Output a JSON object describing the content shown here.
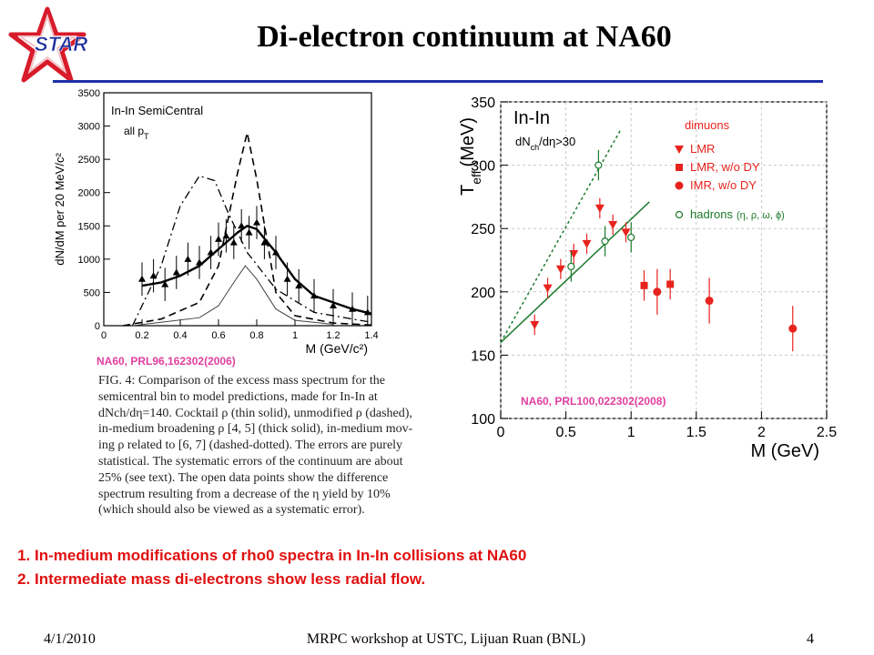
{
  "logo": {
    "text": "STAR"
  },
  "title": "Di-electron continuum at NA60",
  "colors": {
    "rule": "#1f2fa8",
    "citation": "#e040a0",
    "bullets": "#e01010",
    "star_red": "#d81b2a",
    "star_blue": "#1a2f9e"
  },
  "chart_data": [
    {
      "type": "line",
      "panel_label": "In-In SemiCentral",
      "panel_sublabel": "all p",
      "panel_sublabel_sub": "T",
      "xlabel": "M (GeV/c²)",
      "ylabel": "dN/dM per 20 MeV/c²",
      "xlim": [
        0,
        1.4
      ],
      "ylim": [
        0,
        3500
      ],
      "x_ticks": [
        "0",
        "0.2",
        "0.4",
        "0.6",
        "0.8",
        "1",
        "1.2",
        "1.4"
      ],
      "y_ticks": [
        "0",
        "500",
        "1000",
        "1500",
        "2000",
        "2500",
        "3000",
        "3500"
      ],
      "series": [
        {
          "style": "data-points",
          "x": [
            0.2,
            0.26,
            0.32,
            0.38,
            0.44,
            0.5,
            0.56,
            0.6,
            0.64,
            0.68,
            0.72,
            0.76,
            0.8,
            0.84,
            0.9,
            0.96,
            1.02,
            1.1,
            1.2,
            1.3,
            1.38
          ],
          "y": [
            700,
            750,
            620,
            800,
            1000,
            950,
            1100,
            1300,
            1350,
            1250,
            1500,
            1400,
            1550,
            1250,
            1100,
            700,
            600,
            450,
            300,
            250,
            200
          ]
        },
        {
          "style": "dashed",
          "x": [
            0.1,
            0.3,
            0.5,
            0.6,
            0.7,
            0.75,
            0.8,
            0.9,
            1.0,
            1.2,
            1.4
          ],
          "y": [
            0,
            100,
            350,
            900,
            2300,
            2900,
            2200,
            500,
            150,
            40,
            10
          ]
        },
        {
          "style": "dashed-dotted",
          "x": [
            0.15,
            0.3,
            0.4,
            0.5,
            0.58,
            0.65,
            0.75,
            0.9,
            1.1,
            1.4
          ],
          "y": [
            0,
            900,
            1800,
            2250,
            2180,
            1700,
            1100,
            550,
            200,
            50
          ]
        },
        {
          "style": "thin-solid",
          "x": [
            0.15,
            0.3,
            0.5,
            0.6,
            0.68,
            0.74,
            0.8,
            0.9,
            1.0,
            1.2
          ],
          "y": [
            0,
            50,
            120,
            300,
            650,
            900,
            700,
            250,
            80,
            20
          ]
        },
        {
          "style": "thick-solid",
          "x": [
            0.2,
            0.3,
            0.4,
            0.5,
            0.6,
            0.7,
            0.75,
            0.8,
            0.9,
            1.0,
            1.1,
            1.3,
            1.4
          ],
          "y": [
            600,
            650,
            750,
            900,
            1150,
            1400,
            1500,
            1450,
            1100,
            700,
            450,
            250,
            180
          ]
        }
      ],
      "citation": "NA60, PRL96,162302(2006)"
    },
    {
      "type": "scatter",
      "panel_label": "In-In",
      "cut_label": "dN",
      "cut_label_rest": "/dη>30",
      "xlabel": "M (GeV)",
      "ylabel": "T",
      "ylabel_sub": "eff",
      "ylabel_unit": "(MeV)",
      "xlim": [
        0,
        2.5
      ],
      "ylim": [
        100,
        350
      ],
      "x_ticks": [
        "0",
        "0.5",
        "1",
        "1.5",
        "2",
        "2.5"
      ],
      "y_ticks": [
        "100",
        "150",
        "200",
        "250",
        "300",
        "350"
      ],
      "legend": {
        "heading": "dimuons",
        "entries": [
          "LMR",
          "LMR, w/o DY",
          "IMR,  w/o DY",
          "hadrons"
        ],
        "hadrons_detail": "(η, ρ, ω, ϕ)"
      },
      "series": [
        {
          "name": "LMR",
          "marker": "triangle-down",
          "x": [
            0.26,
            0.36,
            0.46,
            0.56,
            0.66,
            0.76,
            0.86,
            0.96
          ],
          "y": [
            174,
            203,
            218,
            230,
            238,
            266,
            253,
            247
          ]
        },
        {
          "name": "LMR, w/o DY",
          "marker": "square",
          "x": [
            1.1,
            1.3
          ],
          "y": [
            205,
            206
          ]
        },
        {
          "name": "IMR,  w/o DY",
          "marker": "circle",
          "x": [
            1.2,
            1.6,
            2.24
          ],
          "y": [
            200,
            193,
            171
          ]
        },
        {
          "name": "hadrons",
          "marker": "open-circle",
          "x": [
            0.54,
            0.75,
            0.8,
            1.0
          ],
          "y": [
            220,
            300,
            240,
            243
          ]
        }
      ],
      "fits": [
        {
          "style": "dotted",
          "x": [
            0,
            0.92
          ],
          "y": [
            160,
            328
          ]
        },
        {
          "style": "solid",
          "x": [
            0,
            1.14
          ],
          "y": [
            160,
            271
          ]
        }
      ],
      "citation": "NA60, PRL100,022302(2008)"
    }
  ],
  "caption": {
    "lines": [
      "FIG. 4: Comparison of the excess mass spectrum for the",
      "semicentral bin to model predictions, made for In-In at",
      "dNch/dη=140. Cocktail ρ (thin solid), unmodified ρ (dashed),",
      "in-medium broadening ρ [4, 5] (thick solid), in-medium mov-",
      "ing ρ related to [6, 7] (dashed-dotted). The errors are purely",
      "statistical. The systematic errors of the continuum are about",
      "25% (see text). The open data points show the difference",
      "spectrum resulting from a decrease of the η yield by 10%",
      "(which should also be viewed as a systematic error)."
    ]
  },
  "bullets": [
    "In-medium modifications of rho0 spectra in In-In collisions at NA60",
    "Intermediate mass di-electrons show less radial flow."
  ],
  "footer": {
    "date": "4/1/2010",
    "center": "MRPC workshop at USTC, Lijuan Ruan (BNL)",
    "page": "4"
  }
}
